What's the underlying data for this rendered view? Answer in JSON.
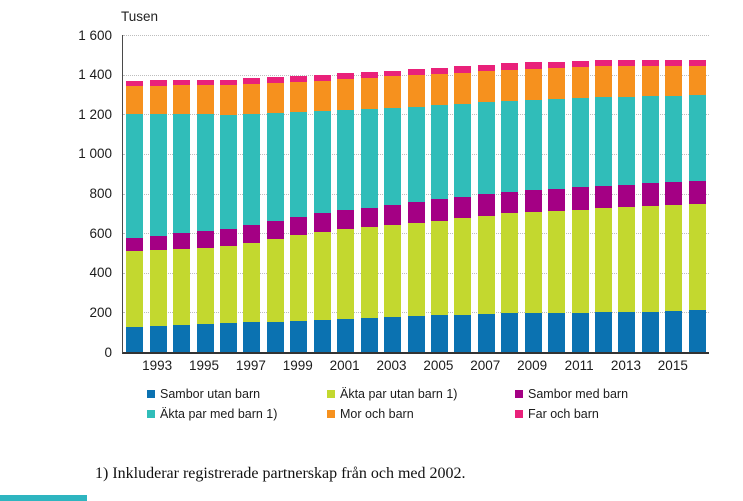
{
  "chart_data": {
    "type": "bar",
    "stacked": true,
    "title": "Tusen",
    "grid": true,
    "legend_position": "bottom",
    "ylim": [
      0,
      1600
    ],
    "y_tick_values": [
      0,
      200,
      400,
      600,
      800,
      1000,
      1200,
      1400,
      1600
    ],
    "y_tick_labels": [
      "0",
      "200",
      "400",
      "600",
      "800",
      "1 000",
      "1 200",
      "1 400",
      "1 600"
    ],
    "x": [
      1992,
      1993,
      1994,
      1995,
      1996,
      1997,
      1998,
      1999,
      2000,
      2001,
      2002,
      2003,
      2004,
      2005,
      2006,
      2007,
      2008,
      2009,
      2010,
      2011,
      2012,
      2013,
      2014,
      2015,
      2016
    ],
    "x_tick_years": [
      1993,
      1995,
      1997,
      1999,
      2001,
      2003,
      2005,
      2007,
      2009,
      2011,
      2013,
      2015
    ],
    "series": [
      {
        "name": "Sambor utan barn",
        "color": "#0b72b1",
        "values": [
          128,
          132,
          137,
          141,
          145,
          149,
          153,
          156,
          160,
          166,
          172,
          177,
          183,
          186,
          189,
          192,
          195,
          196,
          198,
          199,
          200,
          201,
          204,
          208,
          213
        ]
      },
      {
        "name": "Äkta par utan barn 1)",
        "color": "#c3d82f",
        "values": [
          380,
          382,
          384,
          386,
          388,
          403,
          418,
          433,
          448,
          453,
          457,
          463,
          467,
          477,
          486,
          496,
          505,
          510,
          515,
          520,
          525,
          529,
          531,
          532,
          532
        ]
      },
      {
        "name": "Sambor med barn",
        "color": "#a40084",
        "values": [
          67,
          73,
          78,
          83,
          89,
          90,
          90,
          92,
          92,
          96,
          100,
          104,
          108,
          108,
          108,
          108,
          108,
          110,
          110,
          112,
          113,
          114,
          116,
          117,
          118
        ]
      },
      {
        "name": "Äkta par med barn 1)",
        "color": "#30bdb9",
        "values": [
          628,
          615,
          601,
          589,
          575,
          560,
          546,
          531,
          517,
          507,
          499,
          489,
          480,
          474,
          470,
          464,
          459,
          456,
          454,
          451,
          449,
          445,
          440,
          436,
          432
        ]
      },
      {
        "name": "Mor och barn",
        "color": "#f6911e",
        "values": [
          139,
          142,
          146,
          149,
          153,
          153,
          153,
          153,
          153,
          155,
          156,
          158,
          160,
          159,
          157,
          156,
          155,
          155,
          155,
          155,
          155,
          154,
          153,
          151,
          150
        ]
      },
      {
        "name": "Far och barn",
        "color": "#e9217a",
        "values": [
          28,
          27,
          27,
          26,
          25,
          26,
          28,
          29,
          30,
          30,
          30,
          30,
          30,
          32,
          33,
          35,
          36,
          35,
          33,
          32,
          30,
          30,
          30,
          31,
          31
        ]
      }
    ]
  },
  "footnote": "1) Inkluderar registrerade partnerskap från och med 2002.",
  "colors": {
    "axis": "#3c3c3c",
    "gridline": "#bdbdbd",
    "corner_strip": "#2eb5c0",
    "background": "#ffffff"
  }
}
